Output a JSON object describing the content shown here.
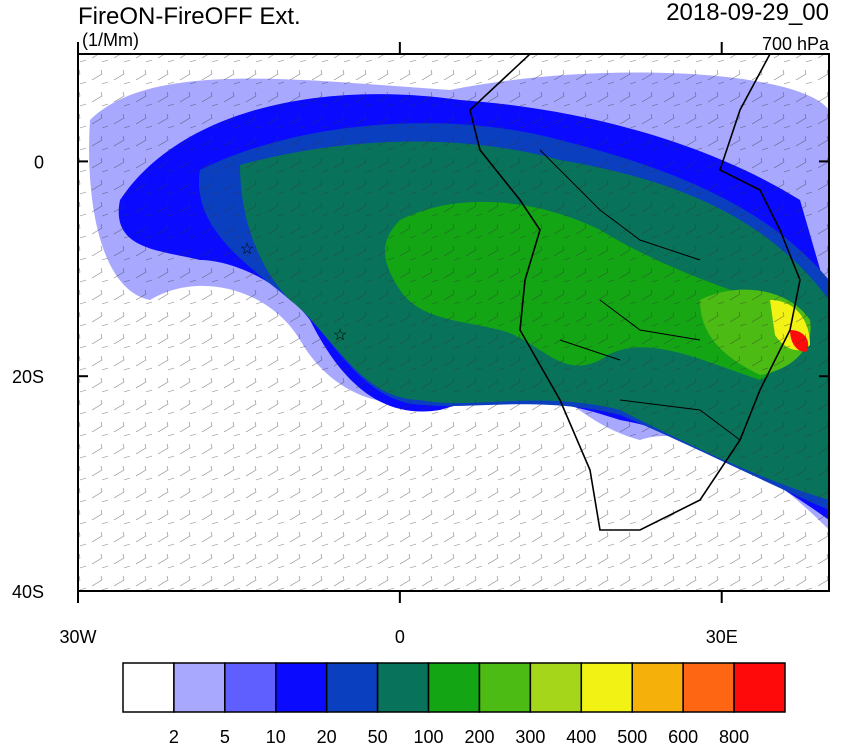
{
  "title": "FireON-FireOFF Ext.",
  "units": "(1/Mm)",
  "date": "2018-09-29_00",
  "level": "700 hPa",
  "map": {
    "lonlim": [
      -30,
      40
    ],
    "latlim": [
      -40,
      10
    ],
    "lat_ticks": [
      0,
      {
        "value": -20,
        "label": "20S"
      },
      {
        "value": -40,
        "label": "40S"
      }
    ],
    "lon_ticks": [
      {
        "value": -30,
        "label": "30W"
      },
      0,
      {
        "value": 30,
        "label": "30E"
      }
    ]
  },
  "colorbar": {
    "levels": [
      2,
      5,
      10,
      20,
      50,
      100,
      200,
      300,
      400,
      500,
      600,
      800
    ],
    "colors": [
      "#ffffff",
      "#a8a8ff",
      "#5f5fff",
      "#0a0aff",
      "#0a3fc0",
      "#08735a",
      "#14a514",
      "#4cbb14",
      "#a6d61a",
      "#f2f214",
      "#f5b00a",
      "#ff6614",
      "#ff0a0a"
    ]
  }
}
